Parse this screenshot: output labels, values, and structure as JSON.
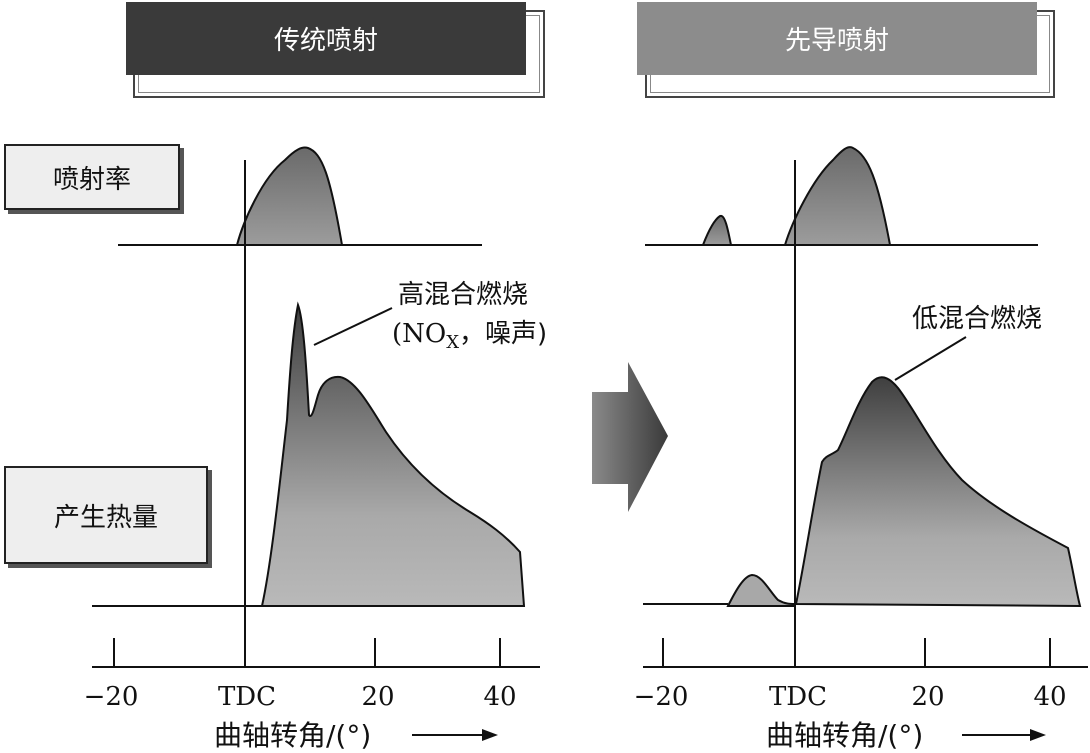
{
  "headers": {
    "left": "传统喷射",
    "right": "先导喷射"
  },
  "row_labels": {
    "injection_rate": "喷射率",
    "heat_release": "产生热量"
  },
  "annotations": {
    "high_mixing": "高混合燃烧",
    "nox_noise_open": "(NO",
    "nox_sub": "X",
    "nox_noise_close": "，噪声)",
    "low_mixing": "低混合燃烧"
  },
  "axis": {
    "ticks": [
      "−20",
      "TDC",
      "20",
      "40"
    ],
    "xlabel": "曲轴转角/(°)"
  },
  "colors": {
    "fill_dark": "#3f3f3f",
    "fill_light": "#b9b9b9",
    "line": "#111111"
  }
}
